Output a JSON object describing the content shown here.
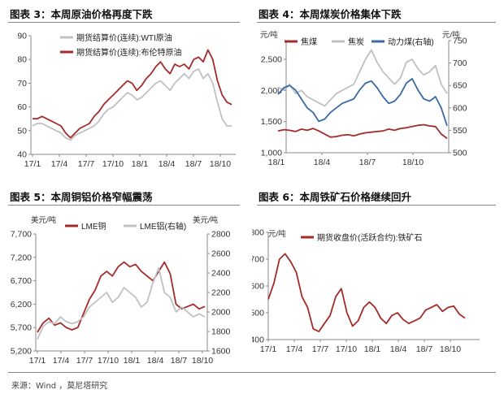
{
  "titles": {
    "p1": "图表 3：本周原油价格再度下跌",
    "p2": "图表 4：本周煤炭价格集体下跌",
    "p3": "图表 5：本周铜铝价格窄幅震荡",
    "p4": "图表 6：本周铁矿石价格继续回升"
  },
  "source": "来源：Wind ，莫尼塔研究",
  "colors": {
    "red": "#a52a2a",
    "gray": "#c0c0c0",
    "blue": "#3b6aa8"
  },
  "chart_data": [
    {
      "type": "line",
      "x_ticks": [
        "17/1",
        "17/4",
        "17/7",
        "17/10",
        "18/1",
        "18/4",
        "18/7",
        "18/10"
      ],
      "ylim": [
        40,
        90
      ],
      "y_ticks": [
        40,
        50,
        60,
        70,
        80,
        90
      ],
      "series": [
        {
          "name": "期货结算价(连续):WTI原油",
          "color": "#c0c0c0",
          "values": [
            52,
            53,
            53,
            52,
            51,
            50,
            49,
            47,
            46,
            48,
            49,
            50,
            51,
            52,
            54,
            57,
            59,
            60,
            62,
            64,
            66,
            65,
            63,
            64,
            66,
            68,
            70,
            71,
            69,
            67,
            70,
            72,
            74,
            72,
            75,
            76,
            72,
            74,
            70,
            62,
            55,
            52,
            52
          ]
        },
        {
          "name": "期货结算价(连续):布伦特原油",
          "color": "#a52a2a",
          "values": [
            55,
            55,
            56,
            55,
            54,
            53,
            52,
            49,
            47,
            49,
            51,
            52,
            53,
            56,
            58,
            61,
            63,
            65,
            67,
            69,
            71,
            70,
            67,
            69,
            72,
            74,
            77,
            79,
            76,
            74,
            78,
            77,
            78,
            76,
            80,
            81,
            79,
            84,
            80,
            71,
            65,
            62,
            61
          ]
        }
      ],
      "xlabel": "",
      "ylabel": ""
    },
    {
      "type": "line",
      "x_ticks": [
        "18/1",
        "18/4",
        "18/7",
        "18/10"
      ],
      "left_unit": "元/吨",
      "right_unit": "元/吨",
      "ylim": [
        1000,
        2800
      ],
      "y_ticks": [
        1000,
        1500,
        2000,
        2500
      ],
      "y2lim": [
        500,
        750
      ],
      "y2_ticks": [
        500,
        550,
        600,
        650,
        700,
        750
      ],
      "series": [
        {
          "name": "焦煤",
          "color": "#a52a2a",
          "axis": "left",
          "values": [
            1350,
            1370,
            1360,
            1340,
            1380,
            1360,
            1390,
            1350,
            1300,
            1250,
            1260,
            1280,
            1290,
            1270,
            1300,
            1320,
            1330,
            1340,
            1350,
            1380,
            1360,
            1390,
            1400,
            1420,
            1440,
            1450,
            1430,
            1420,
            1300,
            1230
          ]
        },
        {
          "name": "焦炭",
          "color": "#c0c0c0",
          "axis": "left",
          "values": [
            2050,
            2000,
            2100,
            1950,
            2000,
            1900,
            1850,
            1800,
            1750,
            1850,
            1950,
            2000,
            2050,
            2100,
            2300,
            2500,
            2650,
            2450,
            2300,
            2200,
            2100,
            2200,
            2450,
            2500,
            2350,
            2250,
            2300,
            2400,
            2100,
            1950
          ]
        },
        {
          "name": "动力煤(右轴)",
          "color": "#3b6aa8",
          "axis": "right",
          "values": [
            630,
            645,
            650,
            640,
            620,
            600,
            590,
            570,
            575,
            590,
            600,
            610,
            615,
            620,
            640,
            655,
            660,
            645,
            625,
            610,
            615,
            630,
            655,
            665,
            640,
            620,
            615,
            625,
            600,
            560
          ]
        }
      ]
    },
    {
      "type": "line",
      "x_ticks": [
        "17/1",
        "17/4",
        "17/7",
        "17/10",
        "18/1",
        "18/4",
        "18/7",
        "18/10"
      ],
      "left_unit": "美元/吨",
      "right_unit": "美元/吨",
      "ylim": [
        5200,
        7700
      ],
      "y_ticks": [
        5200,
        5700,
        6200,
        6700,
        7200,
        7700
      ],
      "y2lim": [
        1600,
        2800
      ],
      "y2_ticks": [
        1600,
        1800,
        2000,
        2200,
        2400,
        2600,
        2800
      ],
      "series": [
        {
          "name": "LME铜",
          "color": "#a52a2a",
          "axis": "left",
          "values": [
            5600,
            5800,
            5900,
            5750,
            5800,
            5700,
            5650,
            5700,
            6000,
            6300,
            6500,
            6800,
            6900,
            6800,
            7000,
            7100,
            7000,
            7050,
            6900,
            6800,
            6700,
            6900,
            7100,
            6850,
            6200,
            6100,
            6150,
            6200,
            6100,
            6150
          ]
        },
        {
          "name": "LME铝(右轴)",
          "color": "#c0c0c0",
          "axis": "right",
          "values": [
            1720,
            1850,
            1900,
            1880,
            1950,
            1900,
            1880,
            1900,
            1950,
            2050,
            2100,
            2150,
            2200,
            2100,
            2150,
            2250,
            2200,
            2150,
            2050,
            2100,
            2300,
            2450,
            2200,
            2150,
            2000,
            2050,
            2000,
            1950,
            1980,
            1950
          ]
        }
      ]
    },
    {
      "type": "line",
      "x_ticks": [
        "17/1",
        "17/4",
        "17/7",
        "17/10",
        "18/1",
        "18/4",
        "18/7",
        "18/10"
      ],
      "unit": "元/吨",
      "ylim": [
        400,
        800
      ],
      "y_ticks": [
        400,
        500,
        600,
        700,
        800
      ],
      "series": [
        {
          "name": "期货收盘价(活跃合约):铁矿石",
          "color": "#a52a2a",
          "values": [
            550,
            610,
            700,
            720,
            690,
            650,
            560,
            520,
            440,
            430,
            460,
            490,
            560,
            590,
            500,
            450,
            470,
            520,
            540,
            520,
            480,
            460,
            490,
            500,
            475,
            460,
            470,
            480,
            510,
            520,
            530,
            505,
            520,
            525,
            495,
            480
          ]
        }
      ]
    }
  ]
}
